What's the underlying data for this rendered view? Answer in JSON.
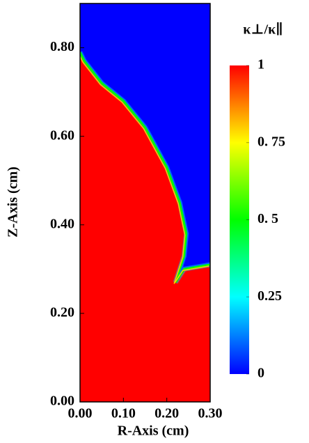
{
  "chart_data": {
    "type": "heatmap",
    "xlabel": "R-Axis (cm)",
    "ylabel": "Z-Axis (cm)",
    "colorbar_title": "κ⊥/κ∥",
    "xlim": [
      0,
      0.3
    ],
    "xticks": [
      {
        "value": 0,
        "label": "0.00"
      },
      {
        "value": 0.1,
        "label": "0.10"
      },
      {
        "value": 0.2,
        "label": "0.20"
      },
      {
        "value": 0.3,
        "label": "0.30"
      }
    ],
    "ylim": [
      0,
      0.9
    ],
    "yticks": [
      {
        "value": 0,
        "label": "0.00"
      },
      {
        "value": 0.2,
        "label": "0.20"
      },
      {
        "value": 0.4,
        "label": "0.40"
      },
      {
        "value": 0.6,
        "label": "0.60"
      },
      {
        "value": 0.8,
        "label": "0.80"
      }
    ],
    "clim": [
      0,
      1
    ],
    "cticks": [
      0,
      0.25,
      {
        "value": 0.5,
        "label": "0. 5"
      },
      {
        "value": 0.75,
        "label": "0. 75"
      },
      1
    ],
    "colormap": [
      "#0000ff",
      "#00ffff",
      "#00ff00",
      "#ffff00",
      "#ff0000"
    ],
    "regions": [
      {
        "value": 0,
        "r": [
          0,
          0.3,
          0.3,
          0
        ],
        "z": [
          0,
          0,
          0.9,
          0.9
        ]
      },
      {
        "value": 1,
        "r": [
          0,
          0,
          0.01,
          0.05,
          0.1,
          0.15,
          0.2,
          0.23,
          0.245,
          0.24,
          0.22,
          0.24,
          0.3,
          0.3
        ],
        "z": [
          0,
          0.79,
          0.77,
          0.72,
          0.68,
          0.62,
          0.53,
          0.45,
          0.38,
          0.33,
          0.27,
          0.3,
          0.31,
          0
        ]
      }
    ],
    "fronts": [
      {
        "value": 0.5,
        "r": [
          0,
          0.01,
          0.05,
          0.1,
          0.15,
          0.2,
          0.23,
          0.245,
          0.24,
          0.22,
          0.24,
          0.3
        ],
        "z": [
          0.79,
          0.77,
          0.72,
          0.68,
          0.62,
          0.53,
          0.45,
          0.38,
          0.33,
          0.27,
          0.3,
          0.31
        ]
      }
    ]
  }
}
